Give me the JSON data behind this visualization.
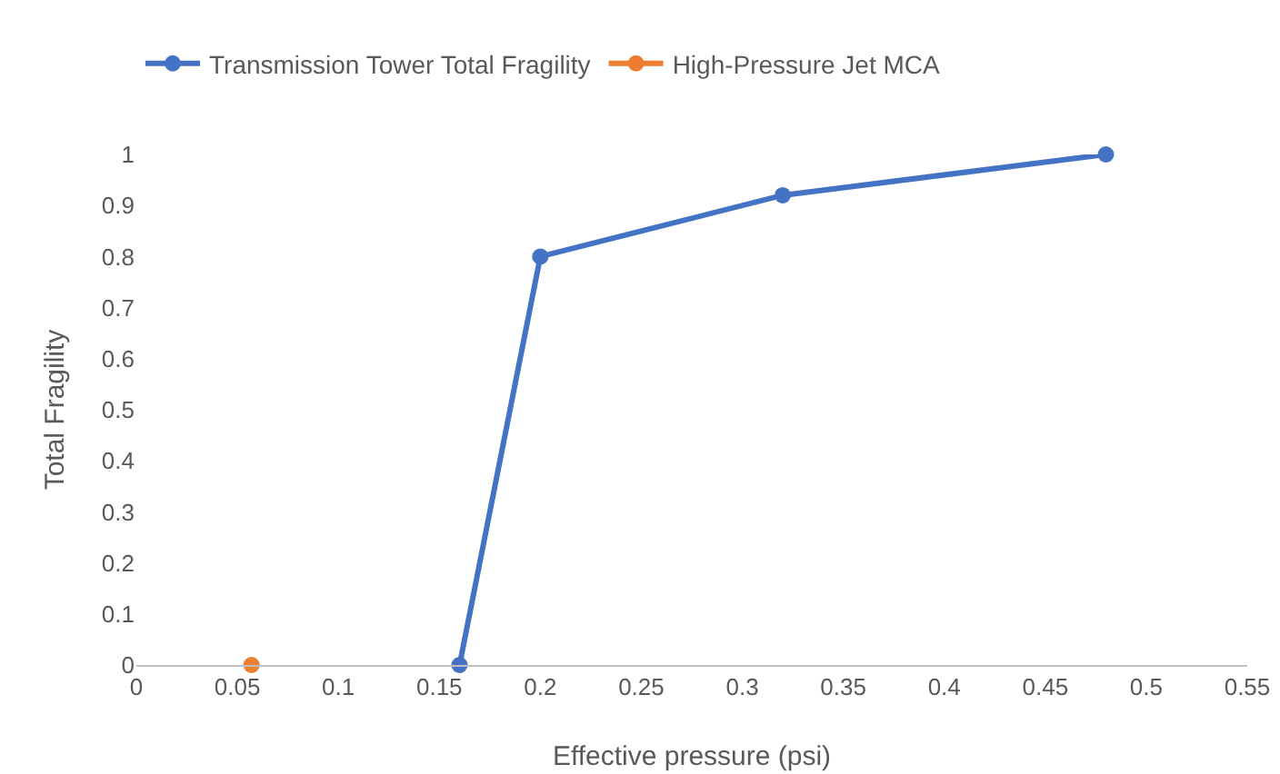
{
  "chart_data": {
    "type": "line",
    "xlabel": "Effective pressure (psi)",
    "ylabel": "Total Fragility",
    "series": [
      {
        "name": "Transmission Tower Total Fragility",
        "color": "#4472c4",
        "x": [
          0.16,
          0.2,
          0.32,
          0.48
        ],
        "values": [
          0,
          0.8,
          0.92,
          1
        ]
      },
      {
        "name": "High-Pressure Jet MCA",
        "color": "#ed7d31",
        "x": [
          0.057
        ],
        "values": [
          0
        ]
      }
    ],
    "xlim": [
      0,
      0.55
    ],
    "xticks": [
      0,
      0.05,
      0.1,
      0.15,
      0.2,
      0.25,
      0.3,
      0.35,
      0.4,
      0.45,
      0.5,
      0.55
    ],
    "ylim": [
      0,
      1
    ],
    "yticks": [
      0,
      0.1,
      0.2,
      0.3,
      0.4,
      0.5,
      0.6,
      0.7,
      0.8,
      0.9,
      1
    ],
    "grid": false,
    "legend": "top",
    "marker": "circle",
    "line_style": "solid"
  }
}
